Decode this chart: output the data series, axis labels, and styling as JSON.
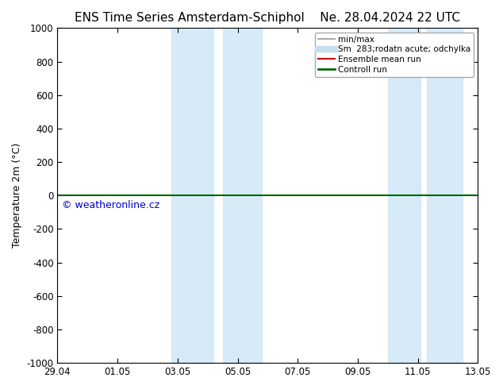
{
  "title_left": "ENS Time Series Amsterdam-Schiphol",
  "title_right": "Ne. 28.04.2024 22 UTC",
  "ylabel": "Temperature 2m (°C)",
  "watermark": "© weatheronline.cz",
  "x_ticks_labels": [
    "29.04",
    "01.05",
    "03.05",
    "05.05",
    "07.05",
    "09.05",
    "11.05",
    "13.05"
  ],
  "x_ticks_pos": [
    0,
    2,
    4,
    6,
    8,
    10,
    12,
    14
  ],
  "xlim": [
    0,
    14
  ],
  "ylim_top": -1000,
  "ylim_bottom": 1000,
  "yticks": [
    -1000,
    -800,
    -600,
    -400,
    -200,
    0,
    200,
    400,
    600,
    800,
    1000
  ],
  "blue_bands": [
    [
      3.8,
      5.2
    ],
    [
      5.5,
      6.8
    ],
    [
      11.0,
      12.1
    ],
    [
      12.3,
      13.5
    ]
  ],
  "green_line_y": 0,
  "background_color": "#ffffff",
  "plot_bg_color": "#ffffff",
  "band_color": "#d6eaf8",
  "legend_entries": [
    {
      "label": "min/max",
      "color": "#aaaaaa",
      "lw": 1.5
    },
    {
      "label": "Sm  283;rodatn acute; odchylka",
      "color": "#c8dff0",
      "lw": 6
    },
    {
      "label": "Ensemble mean run",
      "color": "#cc0000",
      "lw": 1.5
    },
    {
      "label": "Controll run",
      "color": "#006600",
      "lw": 2
    }
  ],
  "title_fontsize": 11,
  "axis_fontsize": 9,
  "tick_fontsize": 8.5,
  "watermark_color": "#0000cc",
  "watermark_fontsize": 9
}
